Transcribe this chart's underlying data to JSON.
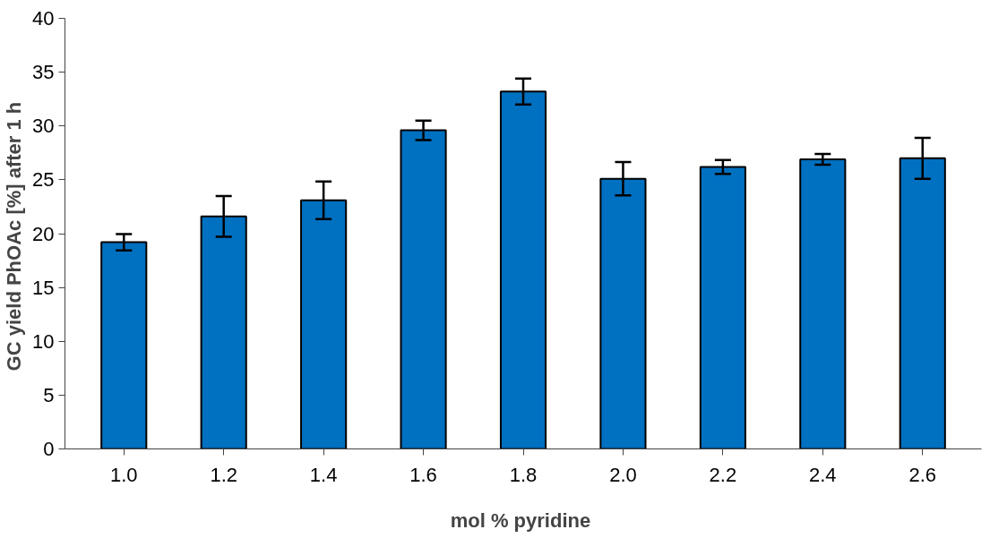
{
  "chart_data": {
    "type": "bar",
    "xlabel": "mol %  pyridine",
    "ylabel": "GC yield PhOAc [%]  after 1 h",
    "categories": [
      "1.0",
      "1.2",
      "1.4",
      "1.6",
      "1.8",
      "2.0",
      "2.2",
      "2.4",
      "2.6"
    ],
    "values": [
      19.2,
      21.6,
      23.1,
      29.6,
      33.2,
      25.1,
      26.2,
      26.9,
      27.0
    ],
    "errors": [
      0.75,
      1.9,
      1.75,
      0.9,
      1.2,
      1.55,
      0.65,
      0.5,
      1.9
    ],
    "color": "#0070c0",
    "ylim": [
      0,
      40
    ],
    "yticks": [
      0,
      5,
      10,
      15,
      20,
      25,
      30,
      35,
      40
    ],
    "grid": false
  }
}
